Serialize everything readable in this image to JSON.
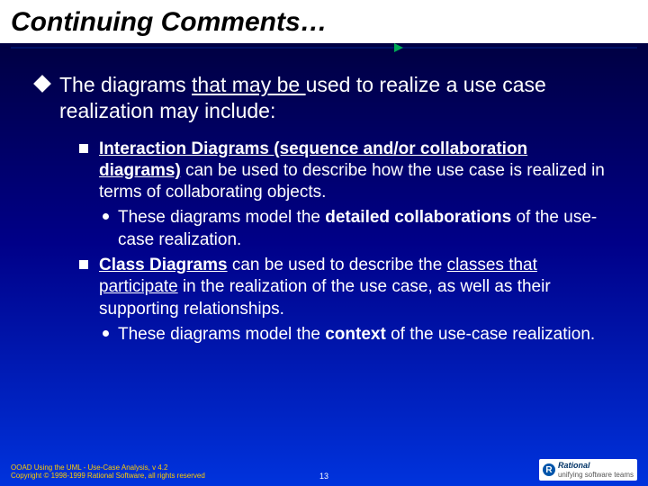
{
  "title": "Continuing Comments…",
  "main": {
    "pre": "The diagrams ",
    "under": "that may be ",
    "post": "used to realize a use case realization may include:"
  },
  "items": [
    {
      "lead_bold": "Interaction Diagrams (sequence and/or collaboration diagrams)",
      "rest": " can be used to describe how the use case is realized in terms of collaborating objects.",
      "sub_pre": "These diagrams model the ",
      "sub_bold": "detailed collaborations",
      "sub_post": " of the use-case realization."
    },
    {
      "lead_bold": "Class Diagrams",
      "rest_pre": " can be used to describe the ",
      "rest_under": "classes that participate",
      "rest_post": " in the realization of the use case, as well as their supporting relationships.",
      "sub_pre": "These diagrams model the ",
      "sub_bold": "context",
      "sub_post": " of the use-case realization."
    }
  ],
  "footer": {
    "line1": "OOAD Using the UML - Use-Case Analysis, v 4.2",
    "line2": "Copyright © 1998-1999 Rational Software, all rights reserved",
    "page": "13",
    "logo_brand": "Rational",
    "logo_sub": "unifying software teams"
  }
}
